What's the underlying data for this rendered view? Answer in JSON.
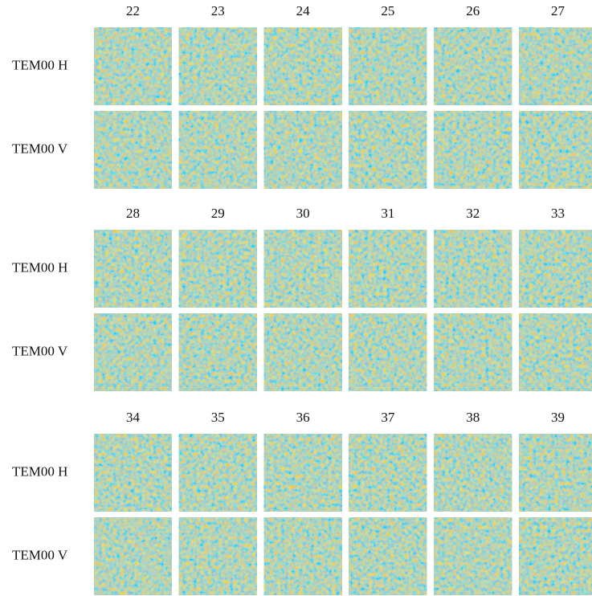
{
  "groups": [
    {
      "columns": [
        "22",
        "23",
        "24",
        "25",
        "26",
        "27"
      ],
      "rows": [
        "TEM00 H",
        "TEM00 V"
      ]
    },
    {
      "columns": [
        "28",
        "29",
        "30",
        "31",
        "32",
        "33"
      ],
      "rows": [
        "TEM00 H",
        "TEM00 V"
      ]
    },
    {
      "columns": [
        "34",
        "35",
        "36",
        "37",
        "38",
        "39"
      ],
      "rows": [
        "TEM00 H",
        "TEM00 V"
      ]
    }
  ]
}
